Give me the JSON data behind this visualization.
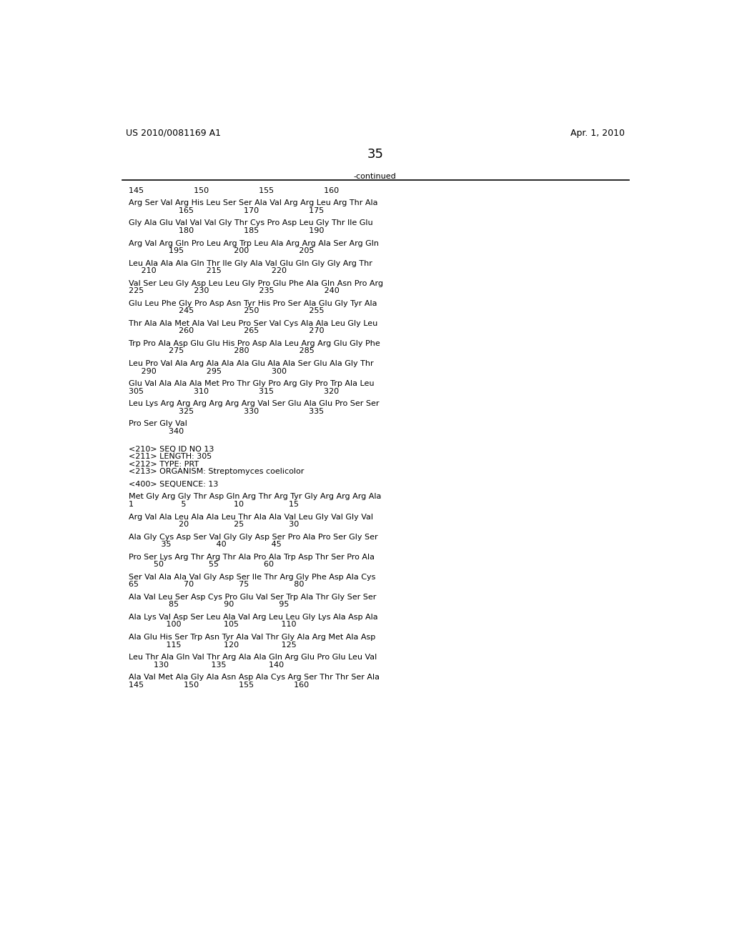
{
  "header_left": "US 2010/0081169 A1",
  "header_right": "Apr. 1, 2010",
  "page_number": "35",
  "continued_label": "-continued",
  "background_color": "#ffffff",
  "text_color": "#000000",
  "blocks_part1": [
    [
      "145                    150                    155                    160",
      null
    ],
    [
      "Arg Ser Val Arg His Leu Ser Ser Ala Val Arg Arg Leu Arg Thr Ala",
      "                    165                    170                    175"
    ],
    [
      "Gly Ala Glu Val Val Val Gly Thr Cys Pro Asp Leu Gly Thr Ile Glu",
      "                    180                    185                    190"
    ],
    [
      "Arg Val Arg Gln Pro Leu Arg Trp Leu Ala Arg Arg Ala Ser Arg Gln",
      "                195                    200                    205"
    ],
    [
      "Leu Ala Ala Ala Gln Thr Ile Gly Ala Val Glu Gln Gly Gly Arg Thr",
      "     210                    215                    220"
    ],
    [
      "Val Ser Leu Gly Asp Leu Leu Gly Pro Glu Phe Ala Gln Asn Pro Arg",
      "225                    230                    235                    240"
    ],
    [
      "Glu Leu Phe Gly Pro Asp Asn Tyr His Pro Ser Ala Glu Gly Tyr Ala",
      "                    245                    250                    255"
    ],
    [
      "Thr Ala Ala Met Ala Val Leu Pro Ser Val Cys Ala Ala Leu Gly Leu",
      "                    260                    265                    270"
    ],
    [
      "Trp Pro Ala Asp Glu Glu His Pro Asp Ala Leu Arg Arg Glu Gly Phe",
      "                275                    280                    285"
    ],
    [
      "Leu Pro Val Ala Arg Ala Ala Ala Glu Ala Ala Ser Glu Ala Gly Thr",
      "     290                    295                    300"
    ],
    [
      "Glu Val Ala Ala Ala Met Pro Thr Gly Pro Arg Gly Pro Trp Ala Leu",
      "305                    310                    315                    320"
    ],
    [
      "Leu Lys Arg Arg Arg Arg Arg Arg Val Ser Glu Ala Glu Pro Ser Ser",
      "                    325                    330                    335"
    ],
    [
      "Pro Ser Gly Val",
      "                340"
    ]
  ],
  "meta_lines": [
    "<210> SEQ ID NO 13",
    "<211> LENGTH: 305",
    "<212> TYPE: PRT",
    "<213> ORGANISM: Streptomyces coelicolor"
  ],
  "sequence_label": "<400> SEQUENCE: 13",
  "blocks_part2": [
    [
      "Met Gly Arg Gly Thr Asp Gln Arg Thr Arg Tyr Gly Arg Arg Arg Ala",
      "1                   5                   10                  15"
    ],
    [
      "Arg Val Ala Leu Ala Ala Leu Thr Ala Ala Val Leu Gly Val Gly Val",
      "                    20                  25                  30"
    ],
    [
      "Ala Gly Cys Asp Ser Val Gly Gly Asp Ser Pro Ala Pro Ser Gly Ser",
      "             35                  40                  45"
    ],
    [
      "Pro Ser Lys Arg Thr Arg Thr Ala Pro Ala Trp Asp Thr Ser Pro Ala",
      "          50                  55                  60"
    ],
    [
      "Ser Val Ala Ala Val Gly Asp Ser Ile Thr Arg Gly Phe Asp Ala Cys",
      "65                  70                  75                  80"
    ],
    [
      "Ala Val Leu Ser Asp Cys Pro Glu Val Ser Trp Ala Thr Gly Ser Ser",
      "                85                  90                  95"
    ],
    [
      "Ala Lys Val Asp Ser Leu Ala Val Arg Leu Leu Gly Lys Ala Asp Ala",
      "               100                 105                 110"
    ],
    [
      "Ala Glu His Ser Trp Asn Tyr Ala Val Thr Gly Ala Arg Met Ala Asp",
      "               115                 120                 125"
    ],
    [
      "Leu Thr Ala Gln Val Thr Arg Ala Ala Gln Arg Glu Pro Glu Leu Val",
      "          130                 135                 140"
    ],
    [
      "Ala Val Met Ala Gly Ala Asn Asp Ala Cys Arg Ser Thr Thr Ser Ala",
      "145                150                155                160"
    ]
  ]
}
